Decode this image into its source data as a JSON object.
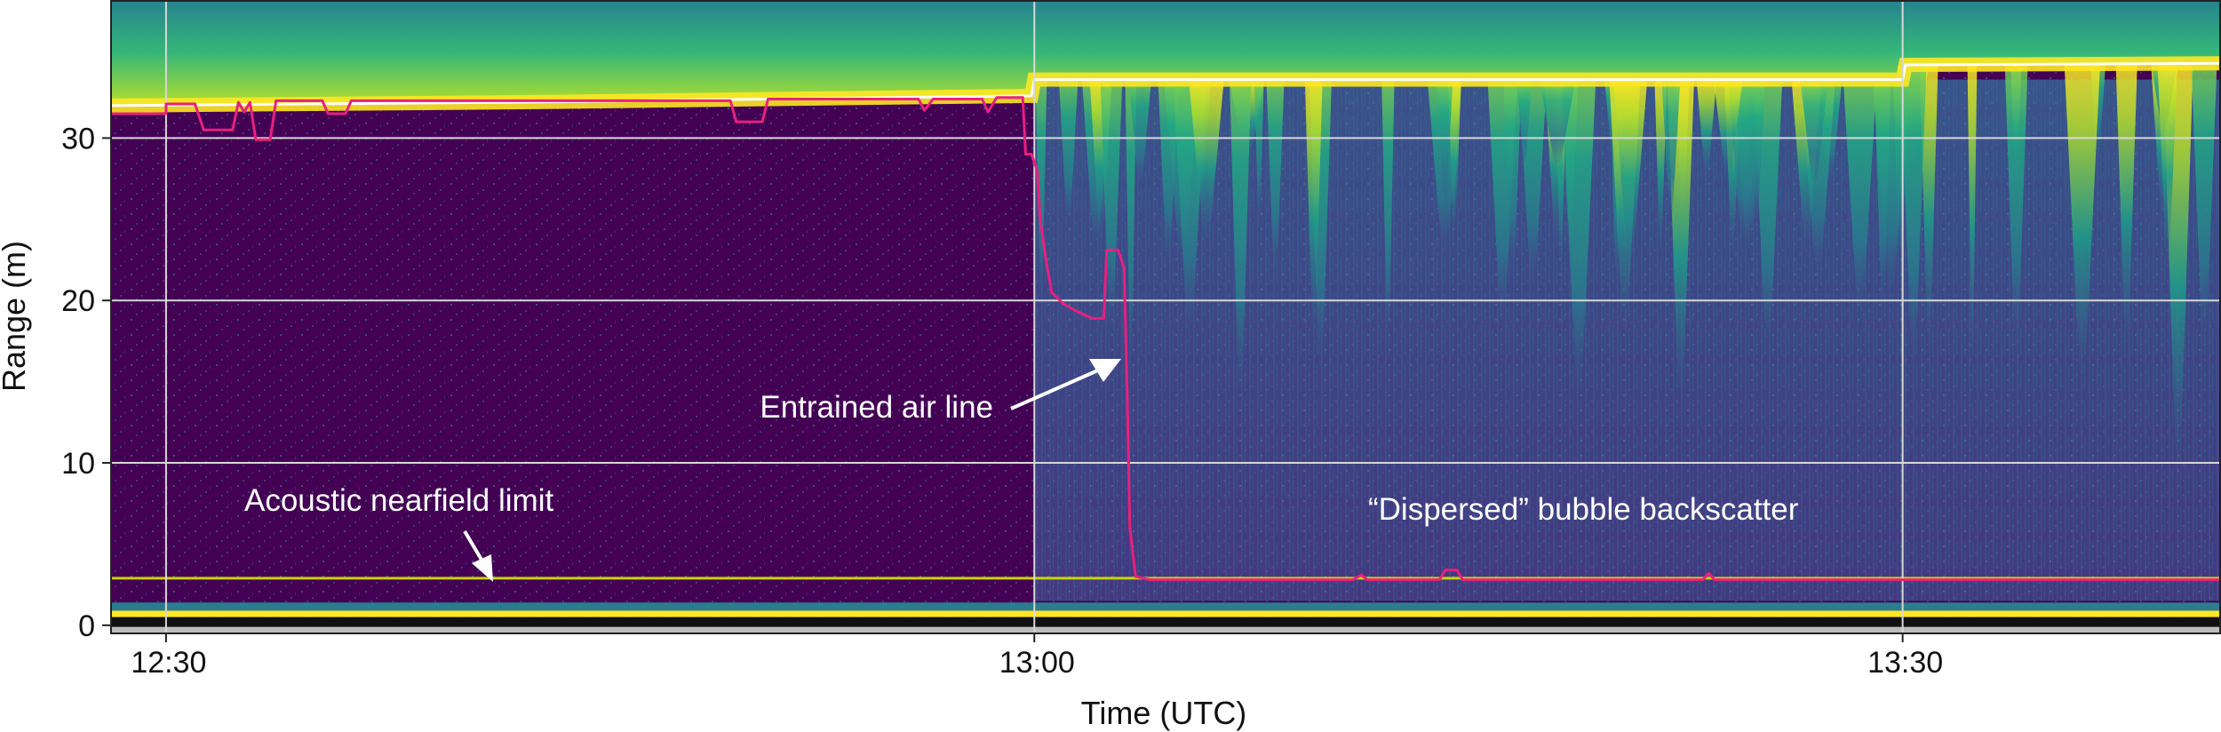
{
  "chart_data": {
    "type": "heatmap",
    "xlabel": "Time (UTC)",
    "ylabel": "Range (m)",
    "x_ticks": [
      "12:30",
      "13:00",
      "13:30"
    ],
    "x_tick_minutes": [
      0,
      30,
      60
    ],
    "x_range_minutes": [
      -1.9,
      71.0
    ],
    "y_ticks": [
      0,
      10,
      20,
      30
    ],
    "ylim": [
      -0.5,
      38.5
    ],
    "grid": true,
    "colormap": "viridis",
    "colors": {
      "background_low": "#440154",
      "mid": "#2a7d8e",
      "high": "#fde725",
      "surface_line": "#ffffff",
      "entrained_air_line": "#e8207e",
      "nearfield_line": "#c8d400",
      "grid": "#d8d8d8"
    },
    "sea_surface_range": [
      {
        "t": -1.9,
        "r": 32.0
      },
      {
        "t": 12.0,
        "r": 32.2
      },
      {
        "t": 29.9,
        "r": 32.6
      },
      {
        "t": 30.0,
        "r": 33.6
      },
      {
        "t": 60.0,
        "r": 33.6
      },
      {
        "t": 60.1,
        "r": 34.5
      },
      {
        "t": 71.0,
        "r": 34.6
      }
    ],
    "nearfield_limit_range": 2.9,
    "series": [
      {
        "name": "Entrained air line",
        "points": [
          {
            "t": -1.9,
            "r": 31.5
          },
          {
            "t": 0.0,
            "r": 31.5
          },
          {
            "t": 0.0,
            "r": 32.1
          },
          {
            "t": 1.0,
            "r": 32.1
          },
          {
            "t": 1.3,
            "r": 30.5
          },
          {
            "t": 2.3,
            "r": 30.5
          },
          {
            "t": 2.5,
            "r": 32.2
          },
          {
            "t": 2.7,
            "r": 31.6
          },
          {
            "t": 2.9,
            "r": 32.2
          },
          {
            "t": 3.1,
            "r": 29.9
          },
          {
            "t": 3.6,
            "r": 29.9
          },
          {
            "t": 3.8,
            "r": 32.3
          },
          {
            "t": 5.4,
            "r": 32.3
          },
          {
            "t": 5.6,
            "r": 31.5
          },
          {
            "t": 6.2,
            "r": 31.5
          },
          {
            "t": 6.4,
            "r": 32.3
          },
          {
            "t": 19.5,
            "r": 32.3
          },
          {
            "t": 19.7,
            "r": 31.0
          },
          {
            "t": 20.6,
            "r": 31.0
          },
          {
            "t": 20.8,
            "r": 32.4
          },
          {
            "t": 26.0,
            "r": 32.4
          },
          {
            "t": 26.2,
            "r": 31.7
          },
          {
            "t": 26.5,
            "r": 32.4
          },
          {
            "t": 28.2,
            "r": 32.4
          },
          {
            "t": 28.4,
            "r": 31.6
          },
          {
            "t": 28.7,
            "r": 32.5
          },
          {
            "t": 29.6,
            "r": 32.5
          },
          {
            "t": 29.7,
            "r": 29.0
          },
          {
            "t": 29.9,
            "r": 29.0
          },
          {
            "t": 30.1,
            "r": 28.0
          },
          {
            "t": 30.2,
            "r": 25.0
          },
          {
            "t": 30.4,
            "r": 22.5
          },
          {
            "t": 30.6,
            "r": 20.5
          },
          {
            "t": 31.0,
            "r": 19.8
          },
          {
            "t": 31.5,
            "r": 19.3
          },
          {
            "t": 32.0,
            "r": 18.9
          },
          {
            "t": 32.4,
            "r": 18.9
          },
          {
            "t": 32.5,
            "r": 23.1
          },
          {
            "t": 32.9,
            "r": 23.1
          },
          {
            "t": 33.1,
            "r": 22.0
          },
          {
            "t": 33.2,
            "r": 15.0
          },
          {
            "t": 33.3,
            "r": 6.0
          },
          {
            "t": 33.5,
            "r": 3.0
          },
          {
            "t": 34.0,
            "r": 2.8
          },
          {
            "t": 41.0,
            "r": 2.8
          },
          {
            "t": 41.3,
            "r": 3.1
          },
          {
            "t": 41.5,
            "r": 2.8
          },
          {
            "t": 44.0,
            "r": 2.8
          },
          {
            "t": 44.2,
            "r": 3.4
          },
          {
            "t": 44.6,
            "r": 3.4
          },
          {
            "t": 44.8,
            "r": 2.8
          },
          {
            "t": 53.1,
            "r": 2.8
          },
          {
            "t": 53.3,
            "r": 3.2
          },
          {
            "t": 53.5,
            "r": 2.8
          },
          {
            "t": 71.0,
            "r": 2.8
          }
        ]
      }
    ],
    "annotations": {
      "entrained_air_line": "Entrained air line",
      "nearfield_limit": "Acoustic nearfield limit",
      "dispersed": "“Dispersed” bubble backscatter"
    }
  }
}
